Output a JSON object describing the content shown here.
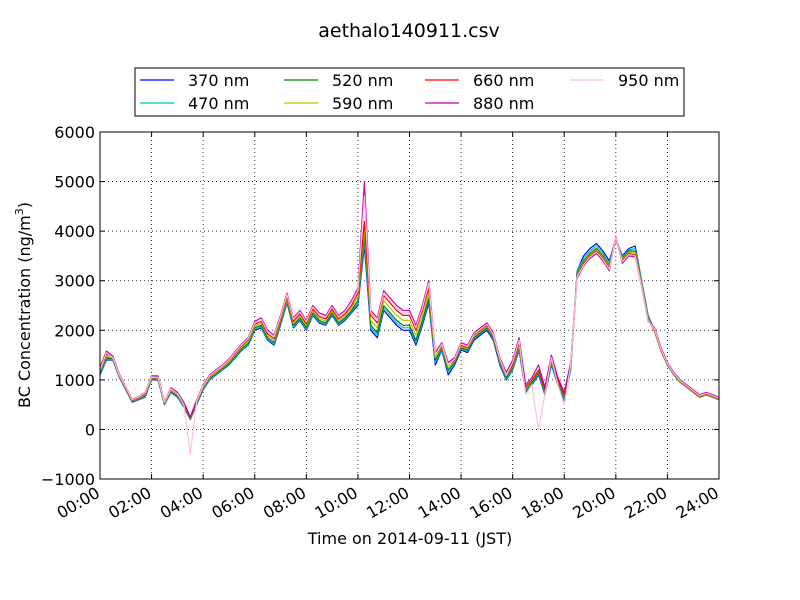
{
  "chart_data": {
    "type": "line",
    "title": "aethalo140911.csv",
    "xlabel": "Time on 2014-09-11 (JST)",
    "ylabel_main": "BC Concentration (ng/m",
    "ylabel_sup": "3",
    "ylabel_close": ")",
    "xlim": [
      0,
      24
    ],
    "ylim": [
      -1000,
      6000
    ],
    "grid": true,
    "legend_position": "top",
    "x_ticks": [
      {
        "value": 0,
        "label": "00:00"
      },
      {
        "value": 2,
        "label": "02:00"
      },
      {
        "value": 4,
        "label": "04:00"
      },
      {
        "value": 6,
        "label": "06:00"
      },
      {
        "value": 8,
        "label": "08:00"
      },
      {
        "value": 10,
        "label": "10:00"
      },
      {
        "value": 12,
        "label": "12:00"
      },
      {
        "value": 14,
        "label": "14:00"
      },
      {
        "value": 16,
        "label": "16:00"
      },
      {
        "value": 18,
        "label": "18:00"
      },
      {
        "value": 20,
        "label": "20:00"
      },
      {
        "value": 22,
        "label": "22:00"
      },
      {
        "value": 24,
        "label": "24:00"
      }
    ],
    "y_ticks": [
      {
        "value": -1000,
        "label": "−1000"
      },
      {
        "value": 0,
        "label": "0"
      },
      {
        "value": 1000,
        "label": "1000"
      },
      {
        "value": 2000,
        "label": "2000"
      },
      {
        "value": 3000,
        "label": "3000"
      },
      {
        "value": 4000,
        "label": "4000"
      },
      {
        "value": 5000,
        "label": "5000"
      },
      {
        "value": 6000,
        "label": "6000"
      }
    ],
    "x": [
      0,
      0.25,
      0.5,
      0.75,
      1,
      1.25,
      1.5,
      1.75,
      2,
      2.25,
      2.5,
      2.75,
      3,
      3.25,
      3.5,
      3.75,
      4,
      4.25,
      4.5,
      4.75,
      5,
      5.25,
      5.5,
      5.75,
      6,
      6.25,
      6.5,
      6.75,
      7,
      7.25,
      7.5,
      7.75,
      8,
      8.25,
      8.5,
      8.75,
      9,
      9.25,
      9.5,
      9.75,
      10,
      10.25,
      10.5,
      10.75,
      11,
      11.25,
      11.5,
      11.75,
      12,
      12.25,
      12.5,
      12.75,
      13,
      13.25,
      13.5,
      13.75,
      14,
      14.25,
      14.5,
      14.75,
      15,
      15.25,
      15.5,
      15.75,
      16,
      16.25,
      16.5,
      16.75,
      17,
      17.25,
      17.5,
      17.75,
      18,
      18.25,
      18.5,
      18.75,
      19,
      19.25,
      19.5,
      19.75,
      20,
      20.25,
      20.5,
      20.75,
      21,
      21.25,
      21.5,
      21.75,
      22,
      22.25,
      22.5,
      22.75,
      23,
      23.25,
      23.5,
      23.75,
      24
    ],
    "series": [
      {
        "name": "370 nm",
        "color": "#0000ff",
        "values": [
          1100,
          1400,
          1400,
          1050,
          800,
          550,
          600,
          650,
          1000,
          1000,
          500,
          750,
          650,
          450,
          200,
          500,
          800,
          1000,
          1100,
          1200,
          1300,
          1450,
          1600,
          1700,
          2000,
          2050,
          1800,
          1700,
          2100,
          2550,
          2050,
          2200,
          2000,
          2300,
          2150,
          2100,
          2300,
          2100,
          2200,
          2350,
          2500,
          3700,
          2000,
          1850,
          2400,
          2250,
          2100,
          2000,
          2000,
          1700,
          2100,
          2550,
          1300,
          1600,
          1100,
          1300,
          1600,
          1550,
          1800,
          1900,
          2000,
          1800,
          1300,
          1000,
          1200,
          1600,
          750,
          900,
          1100,
          700,
          1300,
          900,
          600,
          1200,
          3200,
          3500,
          3650,
          3750,
          3600,
          3400,
          3850,
          3500,
          3650,
          3700,
          3000,
          2300,
          2000,
          1600,
          1300,
          1100,
          950,
          850,
          750,
          650,
          700,
          650,
          600
        ]
      },
      {
        "name": "470 nm",
        "color": "#00bfbf",
        "values": [
          1120,
          1420,
          1410,
          1060,
          810,
          560,
          610,
          660,
          1010,
          1010,
          510,
          760,
          660,
          460,
          210,
          510,
          810,
          1010,
          1110,
          1210,
          1310,
          1460,
          1610,
          1710,
          2020,
          2070,
          1820,
          1720,
          2120,
          2570,
          2070,
          2220,
          2020,
          2320,
          2170,
          2120,
          2320,
          2120,
          2220,
          2370,
          2540,
          3800,
          2050,
          1900,
          2450,
          2300,
          2150,
          2050,
          2050,
          1750,
          2150,
          2600,
          1350,
          1620,
          1150,
          1330,
          1630,
          1580,
          1830,
          1930,
          2030,
          1830,
          1330,
          1020,
          1220,
          1620,
          770,
          920,
          1120,
          720,
          1320,
          920,
          620,
          1220,
          3200,
          3450,
          3600,
          3700,
          3550,
          3350,
          3850,
          3480,
          3620,
          3650,
          2980,
          2280,
          1990,
          1590,
          1300,
          1100,
          950,
          850,
          750,
          650,
          700,
          650,
          600
        ]
      },
      {
        "name": "520 nm",
        "color": "#007f00",
        "values": [
          1150,
          1450,
          1420,
          1070,
          820,
          570,
          620,
          680,
          1020,
          1020,
          520,
          770,
          680,
          480,
          220,
          530,
          830,
          1030,
          1130,
          1230,
          1330,
          1480,
          1630,
          1740,
          2050,
          2100,
          1850,
          1750,
          2150,
          2600,
          2100,
          2250,
          2050,
          2350,
          2200,
          2150,
          2350,
          2150,
          2250,
          2400,
          2600,
          3900,
          2100,
          1950,
          2500,
          2350,
          2200,
          2100,
          2100,
          1800,
          2200,
          2650,
          1400,
          1650,
          1200,
          1350,
          1650,
          1600,
          1850,
          1950,
          2050,
          1850,
          1350,
          1050,
          1250,
          1650,
          800,
          950,
          1150,
          750,
          1350,
          950,
          650,
          1250,
          3150,
          3400,
          3550,
          3650,
          3500,
          3300,
          3850,
          3450,
          3600,
          3600,
          2950,
          2250,
          1980,
          1580,
          1300,
          1100,
          950,
          850,
          750,
          650,
          700,
          650,
          600
        ]
      },
      {
        "name": "590 nm",
        "color": "#bfbf00",
        "values": [
          1180,
          1480,
          1440,
          1080,
          830,
          580,
          630,
          700,
          1040,
          1040,
          530,
          790,
          700,
          500,
          230,
          550,
          850,
          1050,
          1150,
          1250,
          1360,
          1510,
          1660,
          1780,
          2080,
          2140,
          1890,
          1790,
          2190,
          2640,
          2140,
          2290,
          2090,
          2390,
          2240,
          2190,
          2390,
          2190,
          2290,
          2450,
          2680,
          4050,
          2200,
          2050,
          2600,
          2450,
          2300,
          2200,
          2200,
          1900,
          2300,
          2750,
          1450,
          1680,
          1250,
          1380,
          1680,
          1630,
          1880,
          1980,
          2080,
          1880,
          1380,
          1080,
          1280,
          1700,
          820,
          980,
          1180,
          780,
          1380,
          980,
          680,
          1280,
          3120,
          3370,
          3520,
          3620,
          3470,
          3280,
          3850,
          3430,
          3580,
          3560,
          2930,
          2230,
          1990,
          1590,
          1310,
          1110,
          960,
          860,
          760,
          660,
          710,
          660,
          610
        ]
      },
      {
        "name": "660 nm",
        "color": "#ff0000",
        "values": [
          1200,
          1520,
          1460,
          1100,
          840,
          590,
          640,
          720,
          1060,
          1060,
          540,
          810,
          720,
          520,
          240,
          570,
          870,
          1070,
          1170,
          1270,
          1390,
          1540,
          1690,
          1810,
          2120,
          2180,
          1930,
          1830,
          2230,
          2680,
          2180,
          2330,
          2130,
          2430,
          2280,
          2230,
          2430,
          2230,
          2330,
          2500,
          2750,
          4200,
          2300,
          2150,
          2700,
          2550,
          2400,
          2300,
          2300,
          2000,
          2400,
          2850,
          1500,
          1700,
          1300,
          1400,
          1700,
          1650,
          1900,
          2000,
          2100,
          1900,
          1400,
          1100,
          1300,
          1750,
          850,
          1000,
          1200,
          800,
          1400,
          1000,
          700,
          1300,
          3100,
          3350,
          3500,
          3600,
          3450,
          3250,
          3850,
          3400,
          3550,
          3520,
          2900,
          2200,
          2000,
          1600,
          1320,
          1120,
          970,
          870,
          770,
          670,
          720,
          670,
          620
        ]
      },
      {
        "name": "880 nm",
        "color": "#bf00bf",
        "values": [
          1250,
          1580,
          1480,
          1120,
          860,
          610,
          660,
          750,
          1080,
          1080,
          560,
          840,
          750,
          550,
          250,
          600,
          900,
          1100,
          1200,
          1300,
          1420,
          1580,
          1730,
          1850,
          2180,
          2250,
          2000,
          1900,
          2300,
          2750,
          2250,
          2400,
          2200,
          2500,
          2350,
          2300,
          2500,
          2300,
          2400,
          2600,
          2850,
          5000,
          2400,
          2250,
          2800,
          2650,
          2500,
          2400,
          2400,
          2100,
          2500,
          3000,
          1550,
          1750,
          1350,
          1450,
          1750,
          1700,
          1950,
          2050,
          2150,
          1950,
          1450,
          1150,
          1400,
          1850,
          900,
          1050,
          1300,
          850,
          1500,
          1050,
          750,
          1350,
          3050,
          3300,
          3450,
          3550,
          3400,
          3200,
          3900,
          3350,
          3500,
          3480,
          2880,
          2180,
          2050,
          1650,
          1350,
          1150,
          1000,
          900,
          800,
          700,
          750,
          700,
          650
        ]
      },
      {
        "name": "950 nm",
        "color": "#ffc0cb",
        "values": [
          1200,
          1550,
          1450,
          1100,
          850,
          600,
          650,
          740,
          1060,
          1050,
          550,
          820,
          720,
          500,
          -500,
          580,
          880,
          1080,
          1180,
          1280,
          1400,
          1560,
          1710,
          1830,
          2150,
          2220,
          1970,
          1870,
          2270,
          2720,
          2220,
          2370,
          2170,
          2470,
          2320,
          2270,
          2470,
          2270,
          2370,
          2560,
          2800,
          4700,
          2350,
          2200,
          2750,
          2600,
          2450,
          2350,
          2350,
          2050,
          2450,
          2950,
          1500,
          1720,
          1300,
          1420,
          1720,
          1670,
          1920,
          2020,
          2120,
          1920,
          1420,
          1100,
          1350,
          1800,
          700,
          900,
          0,
          700,
          1450,
          900,
          500,
          1300,
          3080,
          3320,
          3480,
          3580,
          3430,
          3230,
          3880,
          3380,
          3530,
          3500,
          2890,
          2190,
          2020,
          1620,
          1330,
          1130,
          980,
          880,
          780,
          680,
          730,
          680,
          630
        ]
      }
    ]
  }
}
